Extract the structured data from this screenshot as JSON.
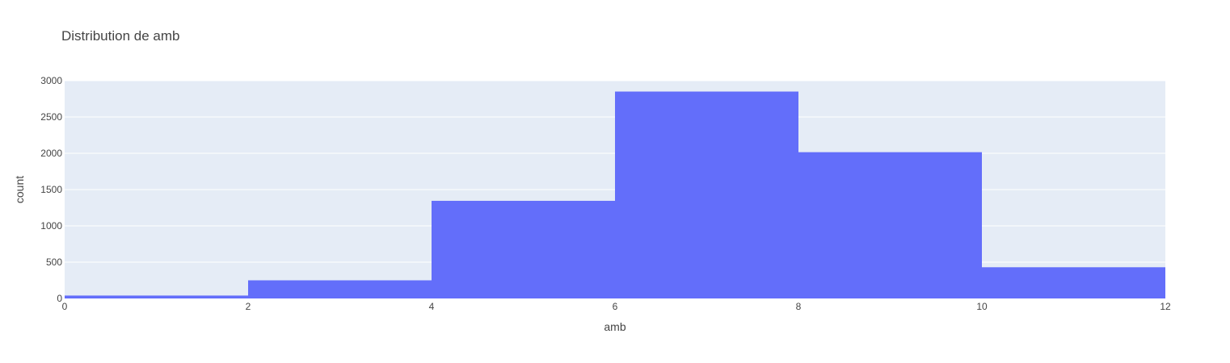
{
  "chart_data": {
    "type": "bar",
    "title": "Distribution de amb",
    "xlabel": "amb",
    "ylabel": "count",
    "bins": [
      {
        "start": 0,
        "end": 2,
        "count": 40
      },
      {
        "start": 2,
        "end": 4,
        "count": 250
      },
      {
        "start": 4,
        "end": 6,
        "count": 1345
      },
      {
        "start": 6,
        "end": 8,
        "count": 2850
      },
      {
        "start": 8,
        "end": 10,
        "count": 2015
      },
      {
        "start": 10,
        "end": 12,
        "count": 430
      }
    ],
    "xlim": [
      0,
      12
    ],
    "ylim": [
      0,
      3000
    ],
    "xticks": [
      0,
      2,
      4,
      6,
      8,
      10,
      12
    ],
    "yticks": [
      0,
      500,
      1000,
      1500,
      2000,
      2500,
      3000
    ],
    "grid": true,
    "colors": {
      "bar": "#636efa",
      "plot_bg": "#e5ecf6",
      "grid": "#ffffff",
      "text": "#444444"
    }
  }
}
